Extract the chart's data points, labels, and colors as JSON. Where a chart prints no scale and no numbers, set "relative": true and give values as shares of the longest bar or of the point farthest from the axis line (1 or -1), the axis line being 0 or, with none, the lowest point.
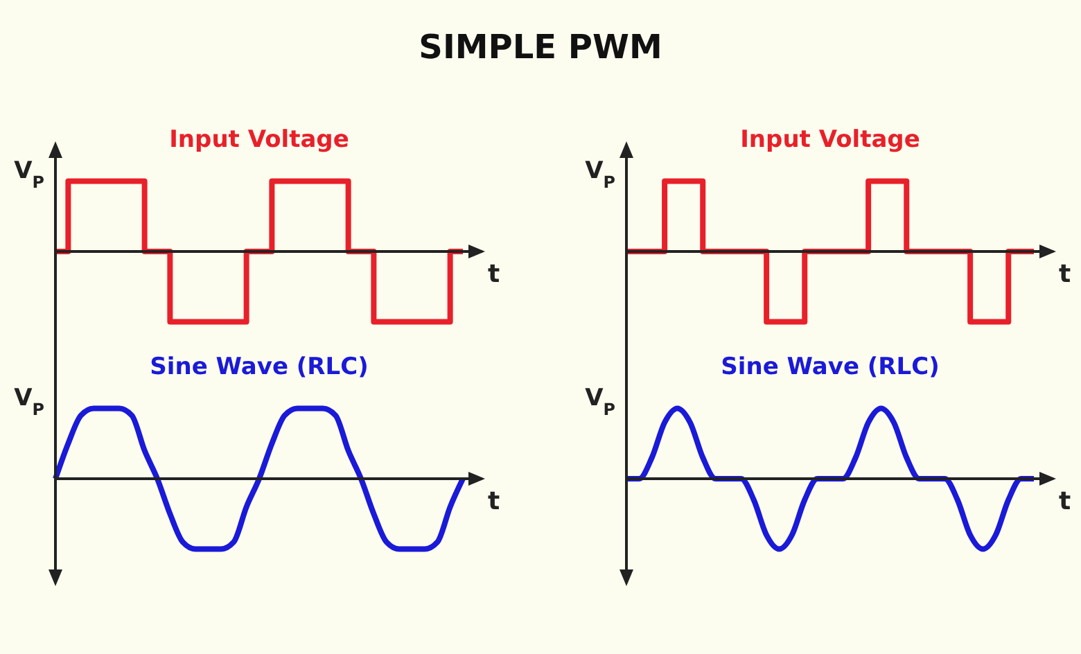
{
  "chart_data": [
    {
      "type": "step",
      "title": "SIMPLE PWM",
      "subtitle": "Input Voltage",
      "ylabel": "V$_{P}$",
      "xlabel": "t",
      "relative": true,
      "categories": [
        null,
        null,
        null,
        null,
        null,
        null,
        null,
        null,
        null,
        null,
        null,
        null,
        null,
        null,
        null,
        null,
        null,
        null,
        null,
        null,
        null,
        null,
        null,
        null,
        null,
        null,
        null,
        null,
        null,
        null,
        null,
        null,
        null
      ],
      "series": [
        {
          "color": "#e8202a",
          "values": [
            0,
            1,
            1,
            1,
            1,
            1,
            1,
            0,
            0,
            -1,
            -1,
            -1,
            -1,
            -1,
            -1,
            0,
            0,
            1,
            1,
            1,
            1,
            1,
            1,
            0,
            0,
            -1,
            -1,
            -1,
            -1,
            -1,
            -1,
            0,
            0
          ]
        }
      ]
    },
    {
      "type": "step",
      "subtitle": "Input Voltage",
      "ylabel": "V$_{P}$",
      "xlabel": "t",
      "relative": true,
      "categories": [
        null,
        null,
        null,
        null,
        null,
        null,
        null,
        null,
        null,
        null,
        null,
        null,
        null,
        null,
        null,
        null,
        null,
        null,
        null,
        null,
        null,
        null,
        null,
        null,
        null,
        null,
        null,
        null,
        null,
        null,
        null,
        null,
        null
      ],
      "series": [
        {
          "color": "#e8202a",
          "values": [
            0,
            0,
            0,
            1,
            1,
            1,
            0,
            0,
            0,
            0,
            0,
            -1,
            -1,
            -1,
            0,
            0,
            0,
            0,
            0,
            1,
            1,
            1,
            0,
            0,
            0,
            0,
            0,
            -1,
            -1,
            -1,
            0,
            0,
            0
          ]
        }
      ]
    },
    {
      "type": "line",
      "subtitle": "Sine Wave (RLC)",
      "ylabel": "V$_{P}$",
      "xlabel": "t",
      "relative": true,
      "categories": [
        null,
        null,
        null,
        null,
        null,
        null,
        null,
        null,
        null,
        null,
        null,
        null,
        null,
        null,
        null,
        null,
        null,
        null,
        null,
        null,
        null,
        null,
        null,
        null,
        null,
        null,
        null,
        null,
        null,
        null,
        null,
        null,
        null
      ],
      "series": [
        {
          "color": "#1a1ad8",
          "values": [
            0,
            0.5,
            0.9,
            1,
            1,
            1,
            0.9,
            0.4,
            0,
            -0.5,
            -0.9,
            -1,
            -1,
            -1,
            -0.9,
            -0.4,
            0,
            0.5,
            0.9,
            1,
            1,
            1,
            0.9,
            0.4,
            0,
            -0.5,
            -0.9,
            -1,
            -1,
            -1,
            -0.9,
            -0.4,
            0
          ]
        }
      ]
    },
    {
      "type": "line",
      "subtitle": "Sine Wave (RLC)",
      "ylabel": "V$_{P}$",
      "xlabel": "t",
      "relative": true,
      "categories": [
        null,
        null,
        null,
        null,
        null,
        null,
        null,
        null,
        null,
        null,
        null,
        null,
        null,
        null,
        null,
        null,
        null,
        null,
        null,
        null,
        null,
        null,
        null,
        null,
        null,
        null,
        null,
        null,
        null,
        null,
        null,
        null,
        null
      ],
      "series": [
        {
          "color": "#1a1ad8",
          "values": [
            0,
            0,
            0.3,
            0.8,
            1,
            0.8,
            0.3,
            0,
            0,
            0,
            -0.3,
            -0.8,
            -1,
            -0.8,
            -0.3,
            0,
            0,
            0,
            0.3,
            0.8,
            1,
            0.8,
            0.3,
            0,
            0,
            0,
            -0.3,
            -0.8,
            -1,
            -0.8,
            -0.3,
            0,
            0
          ]
        }
      ]
    }
  ]
}
